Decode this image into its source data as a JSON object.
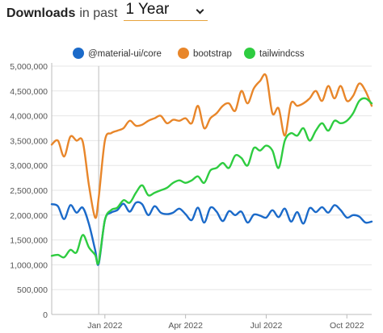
{
  "header": {
    "title": "Downloads",
    "subtitle": "in past",
    "period": "1 Year"
  },
  "chart_data": {
    "type": "line",
    "y_range": [
      0,
      5000000
    ],
    "y_ticks": [
      0,
      500000,
      1000000,
      1500000,
      2000000,
      2500000,
      3000000,
      3500000,
      4000000,
      4500000,
      5000000
    ],
    "y_tick_labels": [
      "0",
      "500,000",
      "1,000,000",
      "1,500,000",
      "2,000,000",
      "2,500,000",
      "3,000,000",
      "3,500,000",
      "4,000,000",
      "4,500,000",
      "5,000,000"
    ],
    "x_range": [
      "2021-11-03",
      "2022-10-30"
    ],
    "x_ticks": [
      {
        "date": "2022-01-02",
        "label": "Jan 2022"
      },
      {
        "date": "2022-04-03",
        "label": "Apr 2022"
      },
      {
        "date": "2022-07-03",
        "label": "Jul 2022"
      },
      {
        "date": "2022-10-02",
        "label": "Oct 2022"
      }
    ],
    "marker_date": "2021-12-26",
    "grid": "horizontal",
    "legend_position": "top",
    "x": [
      "2021-11-03",
      "2021-11-10",
      "2021-11-17",
      "2021-11-24",
      "2021-12-01",
      "2021-12-08",
      "2021-12-15",
      "2021-12-22",
      "2021-12-26",
      "2022-01-02",
      "2022-01-09",
      "2022-01-16",
      "2022-01-23",
      "2022-01-30",
      "2022-02-06",
      "2022-02-13",
      "2022-02-20",
      "2022-02-27",
      "2022-03-06",
      "2022-03-13",
      "2022-03-20",
      "2022-03-27",
      "2022-04-03",
      "2022-04-10",
      "2022-04-17",
      "2022-04-24",
      "2022-05-01",
      "2022-05-08",
      "2022-05-15",
      "2022-05-22",
      "2022-05-29",
      "2022-06-05",
      "2022-06-12",
      "2022-06-19",
      "2022-06-26",
      "2022-07-03",
      "2022-07-10",
      "2022-07-17",
      "2022-07-24",
      "2022-07-31",
      "2022-08-07",
      "2022-08-14",
      "2022-08-21",
      "2022-08-28",
      "2022-09-04",
      "2022-09-11",
      "2022-09-18",
      "2022-09-25",
      "2022-10-02",
      "2022-10-09",
      "2022-10-16",
      "2022-10-23",
      "2022-10-30"
    ],
    "series": [
      {
        "name": "@material-ui/core",
        "color": "#1b6ac9",
        "values": [
          2220000,
          2180000,
          1920000,
          2200000,
          2050000,
          2150000,
          1820000,
          1300000,
          1020000,
          1900000,
          2050000,
          2100000,
          2230000,
          2070000,
          2250000,
          2220000,
          2000000,
          2180000,
          2050000,
          2020000,
          2050000,
          2130000,
          2020000,
          1900000,
          2150000,
          1850000,
          2150000,
          2070000,
          1880000,
          2080000,
          2000000,
          2070000,
          1850000,
          2010000,
          1990000,
          1950000,
          2100000,
          1960000,
          2130000,
          1870000,
          2060000,
          1830000,
          2140000,
          2060000,
          2160000,
          2050000,
          2200000,
          2100000,
          1950000,
          2000000,
          1970000,
          1850000,
          1870000
        ]
      },
      {
        "name": "bootstrap",
        "color": "#e8862a",
        "values": [
          3420000,
          3500000,
          3180000,
          3580000,
          3500000,
          3480000,
          2600000,
          1950000,
          2350000,
          3500000,
          3650000,
          3700000,
          3750000,
          3900000,
          3800000,
          3820000,
          3900000,
          3950000,
          4000000,
          3850000,
          3920000,
          3900000,
          3950000,
          3850000,
          4200000,
          3750000,
          3950000,
          4050000,
          4200000,
          4250000,
          4100000,
          4500000,
          4250000,
          4550000,
          4700000,
          4800000,
          4050000,
          4150000,
          3600000,
          4250000,
          4200000,
          4250000,
          4350000,
          4500000,
          4300000,
          4600000,
          4350000,
          4600000,
          4300000,
          4400000,
          4650000,
          4500000,
          4200000
        ]
      },
      {
        "name": "tailwindcss",
        "color": "#2ecc40",
        "values": [
          1180000,
          1200000,
          1150000,
          1300000,
          1250000,
          1600000,
          1350000,
          1200000,
          1050000,
          1900000,
          2100000,
          2150000,
          2300000,
          2250000,
          2450000,
          2600000,
          2400000,
          2450000,
          2500000,
          2550000,
          2650000,
          2700000,
          2650000,
          2700000,
          2780000,
          2650000,
          2900000,
          2950000,
          3050000,
          2950000,
          3200000,
          3150000,
          3000000,
          3350000,
          3300000,
          3400000,
          3300000,
          2950000,
          3500000,
          3650000,
          3600000,
          3750000,
          3500000,
          3700000,
          3850000,
          3700000,
          3900000,
          3850000,
          3900000,
          4050000,
          4300000,
          4350000,
          4250000
        ]
      }
    ]
  }
}
